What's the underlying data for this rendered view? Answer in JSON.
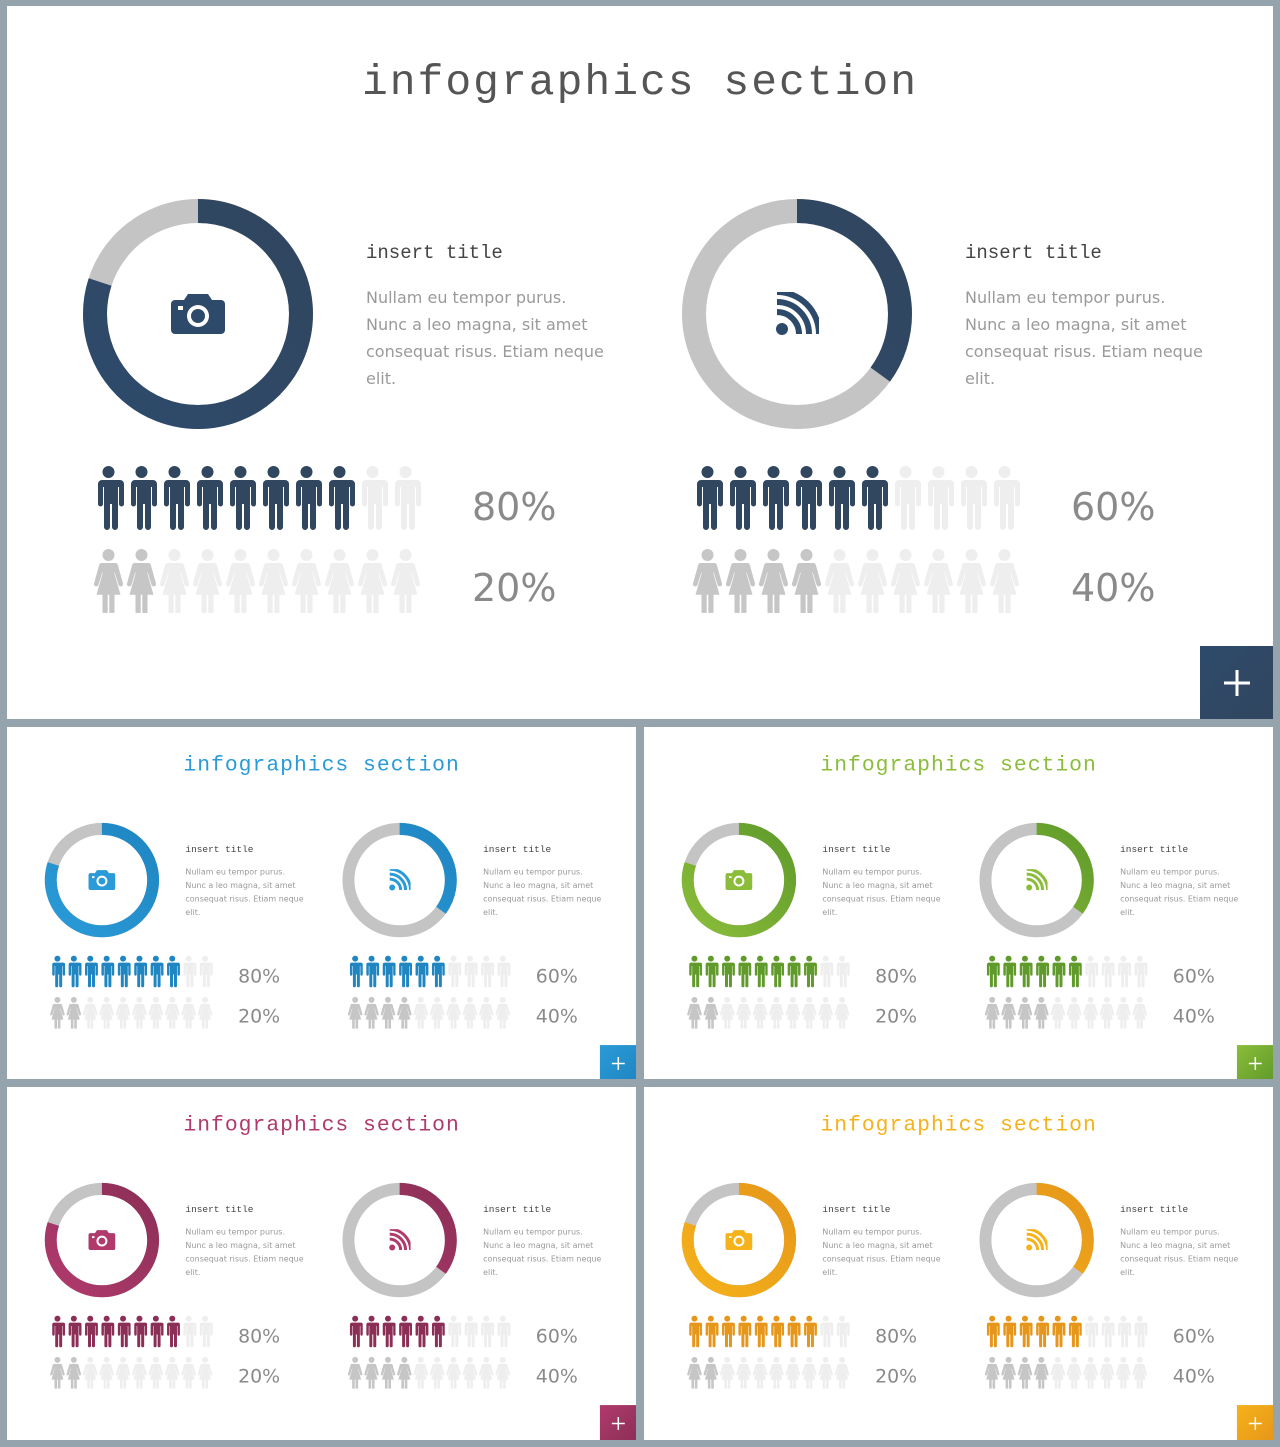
{
  "slides": [
    {
      "title": "infographics section",
      "accent": "#2e4a6b",
      "accent_dark": "#31465f",
      "left": {
        "icon": "camera-icon",
        "ring_percent": 80,
        "heading": "insert title",
        "body": "Nullam eu tempor purus. Nunc a leo magna, sit amet consequat risus. Etiam neque elit.",
        "male_percent": 80,
        "female_percent": 20,
        "male_label": "80%",
        "female_label": "20%"
      },
      "right": {
        "icon": "rss-icon",
        "ring_percent": 35,
        "heading": "insert title",
        "body": "Nullam eu tempor purus. Nunc a leo magna, sit amet consequat risus. Etiam neque elit.",
        "male_percent": 60,
        "female_percent": 40,
        "male_label": "60%",
        "female_label": "40%"
      },
      "plus_label": "+"
    },
    {
      "title": "infographics section",
      "accent": "#2a9bd8",
      "accent_dark": "#1f86c2",
      "left": {
        "icon": "camera-icon",
        "ring_percent": 80,
        "heading": "insert title",
        "body": "Nullam eu tempor purus. Nunc a leo magna, sit amet consequat risus. Etiam neque elit.",
        "male_percent": 80,
        "female_percent": 20,
        "male_label": "80%",
        "female_label": "20%"
      },
      "right": {
        "icon": "rss-icon",
        "ring_percent": 35,
        "heading": "insert title",
        "body": "Nullam eu tempor purus. Nunc a leo magna, sit amet consequat risus. Etiam neque elit.",
        "male_percent": 60,
        "female_percent": 40,
        "male_label": "60%",
        "female_label": "40%"
      },
      "plus_label": "+"
    },
    {
      "title": "infographics section",
      "accent": "#8bbd3a",
      "accent_dark": "#5f9a2a",
      "left": {
        "icon": "camera-icon",
        "ring_percent": 80,
        "heading": "insert title",
        "body": "Nullam eu tempor purus. Nunc a leo magna, sit amet consequat risus. Etiam neque elit.",
        "male_percent": 80,
        "female_percent": 20,
        "male_label": "80%",
        "female_label": "20%"
      },
      "right": {
        "icon": "rss-icon",
        "ring_percent": 35,
        "heading": "insert title",
        "body": "Nullam eu tempor purus. Nunc a leo magna, sit amet consequat risus. Etiam neque elit.",
        "male_percent": 60,
        "female_percent": 40,
        "male_label": "60%",
        "female_label": "40%"
      },
      "plus_label": "+"
    },
    {
      "title": "infographics section",
      "accent": "#b03a6c",
      "accent_dark": "#8c2f57",
      "left": {
        "icon": "camera-icon",
        "ring_percent": 80,
        "heading": "insert title",
        "body": "Nullam eu tempor purus. Nunc a leo magna, sit amet consequat risus. Etiam neque elit.",
        "male_percent": 80,
        "female_percent": 20,
        "male_label": "80%",
        "female_label": "20%"
      },
      "right": {
        "icon": "rss-icon",
        "ring_percent": 35,
        "heading": "insert title",
        "body": "Nullam eu tempor purus. Nunc a leo magna, sit amet consequat risus. Etiam neque elit.",
        "male_percent": 60,
        "female_percent": 40,
        "male_label": "60%",
        "female_label": "40%"
      },
      "plus_label": "+"
    },
    {
      "title": "infographics section",
      "accent": "#f5b21a",
      "accent_dark": "#e6961a",
      "left": {
        "icon": "camera-icon",
        "ring_percent": 80,
        "heading": "insert title",
        "body": "Nullam eu tempor purus. Nunc a leo magna, sit amet consequat risus. Etiam neque elit.",
        "male_percent": 80,
        "female_percent": 20,
        "male_label": "80%",
        "female_label": "20%"
      },
      "right": {
        "icon": "rss-icon",
        "ring_percent": 35,
        "heading": "insert title",
        "body": "Nullam eu tempor purus. Nunc a leo magna, sit amet consequat risus. Etiam neque elit.",
        "male_percent": 60,
        "female_percent": 40,
        "male_label": "60%",
        "female_label": "40%"
      },
      "plus_label": "+"
    }
  ],
  "colors": {
    "ring_track": "#c4c4c4",
    "male_inactive": "#eeeeee",
    "female_active": "#c6c6c6",
    "female_inactive": "#eeeeee"
  }
}
